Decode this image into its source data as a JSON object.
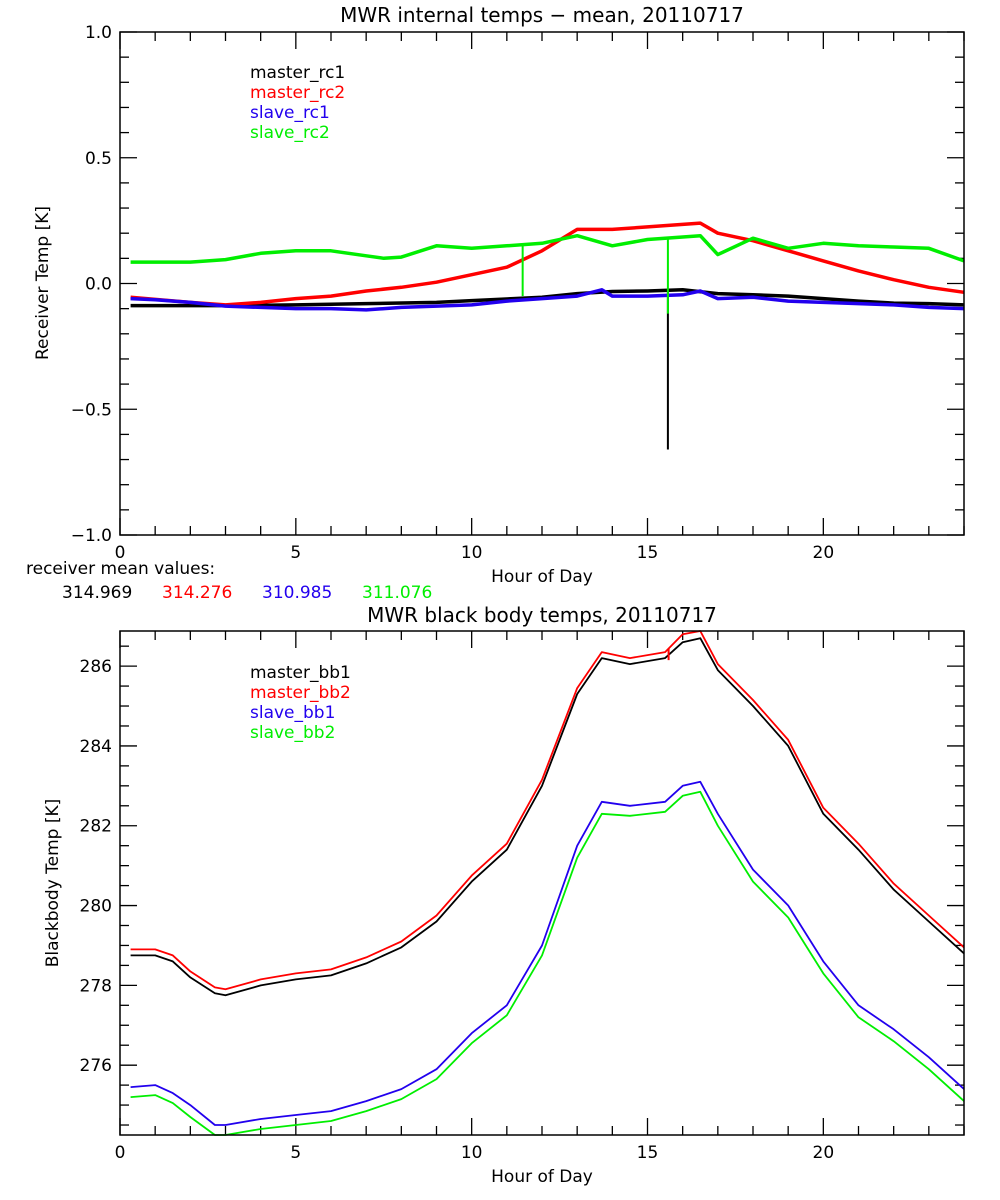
{
  "chart_data": [
    {
      "type": "line",
      "title": "MWR internal temps − mean, 20110717",
      "xlabel": "Hour of Day",
      "ylabel": "Receiver Temp [K]",
      "xlim": [
        0,
        24
      ],
      "ylim": [
        -1.0,
        1.0
      ],
      "xticks": [
        0,
        5,
        10,
        15,
        20
      ],
      "xtick_labels": [
        "0",
        "5",
        "10",
        "15",
        "20"
      ],
      "yticks": [
        -1.0,
        -0.5,
        0.0,
        0.5,
        1.0
      ],
      "ytick_labels": [
        "−1.0",
        "−0.5",
        "0.0",
        "0.5",
        "1.0"
      ],
      "grid": false,
      "legend_position": "top-left",
      "footnote": {
        "label": "receiver mean values:",
        "values": [
          {
            "text": "314.969",
            "color": "#000000"
          },
          {
            "text": "314.276",
            "color": "#ff0000"
          },
          {
            "text": "310.985",
            "color": "#2200ee"
          },
          {
            "text": "311.076",
            "color": "#00ee00"
          }
        ]
      },
      "series": [
        {
          "name": "master_rc1",
          "color": "#000000",
          "x": [
            0.3,
            3,
            5,
            7,
            9,
            10,
            12,
            13,
            14,
            15,
            16,
            17,
            18,
            19,
            20,
            21,
            22,
            23,
            24
          ],
          "y": [
            -0.088,
            -0.088,
            -0.085,
            -0.08,
            -0.075,
            -0.068,
            -0.055,
            -0.04,
            -0.032,
            -0.03,
            -0.025,
            -0.04,
            -0.045,
            -0.05,
            -0.06,
            -0.07,
            -0.078,
            -0.08,
            -0.085
          ],
          "spikes": [
            {
              "x": 15.58,
              "y": -0.66
            }
          ]
        },
        {
          "name": "master_rc2",
          "color": "#ff0000",
          "x": [
            0.3,
            2,
            3,
            4,
            5,
            6,
            7,
            8,
            9,
            10,
            11,
            12,
            13,
            14,
            15,
            16,
            16.5,
            17,
            18,
            19,
            20,
            21,
            22,
            23,
            24
          ],
          "y": [
            -0.055,
            -0.075,
            -0.085,
            -0.075,
            -0.06,
            -0.05,
            -0.03,
            -0.015,
            0.005,
            0.035,
            0.065,
            0.13,
            0.215,
            0.215,
            0.225,
            0.235,
            0.24,
            0.2,
            0.17,
            0.13,
            0.09,
            0.05,
            0.015,
            -0.015,
            -0.035
          ],
          "spikes": []
        },
        {
          "name": "slave_rc1",
          "color": "#2200ee",
          "x": [
            0.3,
            1,
            2,
            3,
            4,
            5,
            6,
            7,
            8,
            9,
            10,
            11,
            12,
            13,
            13.7,
            14,
            15,
            16,
            16.5,
            17,
            18,
            19,
            20,
            21,
            22,
            23,
            24
          ],
          "y": [
            -0.06,
            -0.065,
            -0.075,
            -0.09,
            -0.095,
            -0.1,
            -0.1,
            -0.105,
            -0.095,
            -0.09,
            -0.085,
            -0.07,
            -0.06,
            -0.05,
            -0.025,
            -0.05,
            -0.05,
            -0.045,
            -0.03,
            -0.06,
            -0.055,
            -0.07,
            -0.075,
            -0.08,
            -0.085,
            -0.095,
            -0.1
          ],
          "spikes": []
        },
        {
          "name": "slave_rc2",
          "color": "#00ee00",
          "x": [
            0.3,
            2,
            3,
            4,
            5,
            6,
            7,
            7.5,
            8,
            9,
            10,
            11,
            12,
            13,
            14,
            15,
            16,
            16.5,
            17,
            18,
            19,
            20,
            21,
            22,
            23,
            24
          ],
          "y": [
            0.085,
            0.085,
            0.095,
            0.12,
            0.13,
            0.13,
            0.11,
            0.1,
            0.105,
            0.15,
            0.14,
            0.15,
            0.16,
            0.19,
            0.15,
            0.175,
            0.185,
            0.19,
            0.115,
            0.18,
            0.14,
            0.16,
            0.15,
            0.145,
            0.14,
            0.09
          ],
          "spikes": [
            {
              "x": 11.45,
              "y": -0.05
            },
            {
              "x": 15.58,
              "y": -0.12
            }
          ]
        }
      ]
    },
    {
      "type": "line",
      "title": "MWR black body temps, 20110717",
      "xlabel": "Hour of Day",
      "ylabel": "Blackbody Temp [K]",
      "xlim": [
        0,
        24
      ],
      "ylim": [
        274.25,
        286.88
      ],
      "xticks": [
        0,
        5,
        10,
        15,
        20
      ],
      "xtick_labels": [
        "0",
        "5",
        "10",
        "15",
        "20"
      ],
      "yticks": [
        276,
        278,
        280,
        282,
        284,
        286
      ],
      "ytick_labels": [
        "276",
        "278",
        "280",
        "282",
        "284",
        "286"
      ],
      "grid": false,
      "legend_position": "top-left",
      "series": [
        {
          "name": "master_bb1",
          "color": "#000000",
          "x": [
            0.3,
            1,
            1.5,
            2,
            2.7,
            3,
            4,
            5,
            6,
            7,
            8,
            9,
            10,
            11,
            12,
            13,
            13.7,
            14.5,
            15.5,
            16,
            16.5,
            17,
            18,
            19,
            20,
            21,
            22,
            23,
            24
          ],
          "y": [
            278.75,
            278.75,
            278.6,
            278.2,
            277.8,
            277.75,
            278.0,
            278.15,
            278.25,
            278.55,
            278.95,
            279.6,
            280.6,
            281.4,
            283.0,
            285.3,
            286.2,
            286.05,
            286.2,
            286.6,
            286.7,
            285.9,
            285.0,
            284.0,
            282.3,
            281.4,
            280.4,
            279.6,
            278.8
          ],
          "spikes": []
        },
        {
          "name": "master_bb2",
          "color": "#ff0000",
          "x": [
            0.3,
            1,
            1.5,
            2,
            2.7,
            3,
            4,
            5,
            6,
            7,
            8,
            9,
            10,
            11,
            12,
            13,
            13.7,
            14.5,
            15.5,
            16,
            16.5,
            17,
            18,
            19,
            20,
            21,
            22,
            23,
            24
          ],
          "y": [
            278.9,
            278.9,
            278.75,
            278.35,
            277.95,
            277.9,
            278.15,
            278.3,
            278.4,
            278.7,
            279.1,
            279.75,
            280.75,
            281.55,
            283.15,
            285.45,
            286.35,
            286.2,
            286.35,
            286.8,
            286.88,
            286.05,
            285.15,
            284.15,
            282.45,
            281.55,
            280.55,
            279.75,
            278.95
          ],
          "spikes": [
            {
              "x": 15.6,
              "y": 286.15
            }
          ]
        },
        {
          "name": "slave_bb1",
          "color": "#2200ee",
          "x": [
            0.3,
            1,
            1.5,
            2,
            2.7,
            3,
            4,
            5,
            6,
            7,
            8,
            9,
            10,
            11,
            12,
            13,
            13.7,
            14.5,
            15.5,
            16,
            16.5,
            17,
            18,
            19,
            20,
            21,
            22,
            23,
            24
          ],
          "y": [
            275.45,
            275.5,
            275.3,
            275.0,
            274.5,
            274.5,
            274.65,
            274.75,
            274.85,
            275.1,
            275.4,
            275.9,
            276.8,
            277.5,
            279.0,
            281.5,
            282.6,
            282.5,
            282.6,
            283.0,
            283.1,
            282.3,
            280.9,
            280.0,
            278.6,
            277.5,
            276.9,
            276.2,
            275.4
          ],
          "spikes": []
        },
        {
          "name": "slave_bb2",
          "color": "#00ee00",
          "x": [
            0.3,
            1,
            1.5,
            2,
            2.7,
            3,
            4,
            5,
            6,
            7,
            8,
            9,
            10,
            11,
            12,
            13,
            13.7,
            14.5,
            15.5,
            16,
            16.5,
            17,
            18,
            19,
            20,
            21,
            22,
            23,
            24
          ],
          "y": [
            275.2,
            275.25,
            275.05,
            274.7,
            274.25,
            274.25,
            274.4,
            274.5,
            274.6,
            274.85,
            275.15,
            275.65,
            276.55,
            277.25,
            278.75,
            281.2,
            282.3,
            282.25,
            282.35,
            282.75,
            282.85,
            282.0,
            280.6,
            279.7,
            278.3,
            277.2,
            276.6,
            275.9,
            275.1
          ],
          "spikes": []
        }
      ]
    }
  ]
}
